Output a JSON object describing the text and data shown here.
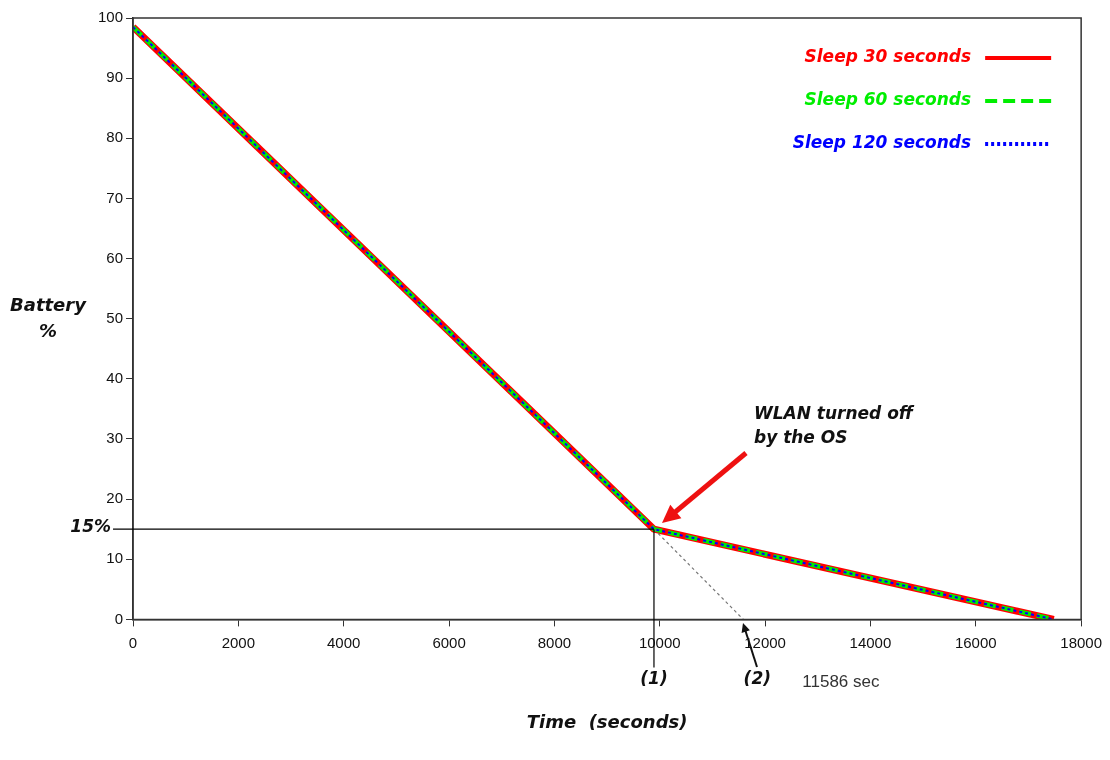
{
  "chart_data": {
    "type": "line",
    "xlabel": "Time  (seconds)",
    "ylabel": "Battery %",
    "x": [
      0,
      9890,
      17480
    ],
    "series": [
      {
        "name": "Sleep 30 seconds",
        "color": "#ff0000",
        "line_style": "solid",
        "values": [
          98.5,
          15,
          0
        ]
      },
      {
        "name": "Sleep 60 seconds",
        "color": "#00ee00",
        "line_style": "dashed",
        "values": [
          98.5,
          15,
          0
        ]
      },
      {
        "name": "Sleep 120 seconds",
        "color": "#0000ff",
        "line_style": "dotted",
        "values": [
          98.5,
          15,
          0
        ]
      },
      {
        "color": "#777777",
        "line_style": "dotted",
        "x": [
          9890,
          11586
        ],
        "values": [
          15,
          0
        ]
      }
    ],
    "xlim": [
      0,
      18000
    ],
    "xticks": [
      0,
      2000,
      4000,
      6000,
      8000,
      10000,
      12000,
      14000,
      16000,
      18000
    ],
    "ylim": [
      0,
      100
    ],
    "yticks": [
      0,
      10,
      20,
      30,
      40,
      50,
      60,
      70,
      80,
      90,
      100
    ],
    "ref_lines": [
      {
        "axis": "y",
        "value": 15,
        "label": "15%",
        "color": "#000000"
      },
      {
        "axis": "x",
        "value": 9890,
        "color": "#000000"
      }
    ],
    "annotations": [
      "WLAN turned off by the OS",
      {
        "text": "(1)",
        "x": 9890,
        "y": 0
      },
      {
        "text": "(2)",
        "x": 11586,
        "y": 0
      },
      "11586 sec"
    ],
    "grid": false,
    "legend": "top right",
    "marker": "none"
  }
}
